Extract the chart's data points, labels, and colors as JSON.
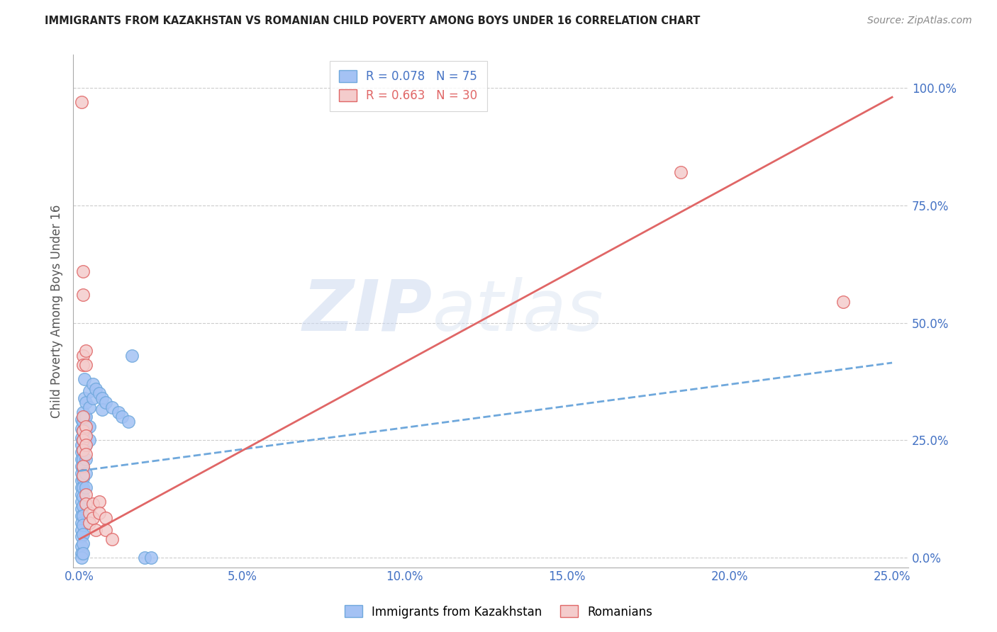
{
  "title": "IMMIGRANTS FROM KAZAKHSTAN VS ROMANIAN CHILD POVERTY AMONG BOYS UNDER 16 CORRELATION CHART",
  "source": "Source: ZipAtlas.com",
  "xlabel_ticks": [
    "0.0%",
    "5.0%",
    "10.0%",
    "15.0%",
    "20.0%",
    "25.0%"
  ],
  "xlabel_vals": [
    0.0,
    0.05,
    0.1,
    0.15,
    0.2,
    0.25
  ],
  "ylabel_ticks": [
    "0.0%",
    "25.0%",
    "50.0%",
    "75.0%",
    "100.0%"
  ],
  "ylabel_vals": [
    0.0,
    0.25,
    0.5,
    0.75,
    1.0
  ],
  "xlim": [
    -0.002,
    0.255
  ],
  "ylim": [
    -0.02,
    1.07
  ],
  "ylabel": "Child Poverty Among Boys Under 16",
  "watermark_zip": "ZIP",
  "watermark_atlas": "atlas",
  "kazakhstan_scatter": [
    [
      0.0005,
      0.295
    ],
    [
      0.0005,
      0.275
    ],
    [
      0.0005,
      0.255
    ],
    [
      0.0005,
      0.24
    ],
    [
      0.0005,
      0.225
    ],
    [
      0.0005,
      0.21
    ],
    [
      0.0005,
      0.195
    ],
    [
      0.0005,
      0.18
    ],
    [
      0.0005,
      0.165
    ],
    [
      0.0005,
      0.15
    ],
    [
      0.0005,
      0.135
    ],
    [
      0.0005,
      0.12
    ],
    [
      0.0005,
      0.105
    ],
    [
      0.0005,
      0.09
    ],
    [
      0.0005,
      0.075
    ],
    [
      0.0005,
      0.06
    ],
    [
      0.0005,
      0.045
    ],
    [
      0.0005,
      0.025
    ],
    [
      0.0005,
      0.01
    ],
    [
      0.0005,
      0.0
    ],
    [
      0.001,
      0.31
    ],
    [
      0.001,
      0.29
    ],
    [
      0.001,
      0.27
    ],
    [
      0.001,
      0.25
    ],
    [
      0.001,
      0.23
    ],
    [
      0.001,
      0.21
    ],
    [
      0.001,
      0.19
    ],
    [
      0.001,
      0.17
    ],
    [
      0.001,
      0.15
    ],
    [
      0.001,
      0.13
    ],
    [
      0.001,
      0.11
    ],
    [
      0.001,
      0.09
    ],
    [
      0.001,
      0.07
    ],
    [
      0.001,
      0.05
    ],
    [
      0.001,
      0.03
    ],
    [
      0.001,
      0.01
    ],
    [
      0.0015,
      0.38
    ],
    [
      0.0015,
      0.34
    ],
    [
      0.0015,
      0.3
    ],
    [
      0.0015,
      0.26
    ],
    [
      0.002,
      0.33
    ],
    [
      0.002,
      0.3
    ],
    [
      0.002,
      0.27
    ],
    [
      0.002,
      0.24
    ],
    [
      0.002,
      0.21
    ],
    [
      0.002,
      0.18
    ],
    [
      0.002,
      0.15
    ],
    [
      0.003,
      0.355
    ],
    [
      0.003,
      0.32
    ],
    [
      0.003,
      0.28
    ],
    [
      0.003,
      0.25
    ],
    [
      0.004,
      0.37
    ],
    [
      0.004,
      0.34
    ],
    [
      0.005,
      0.36
    ],
    [
      0.006,
      0.35
    ],
    [
      0.007,
      0.34
    ],
    [
      0.007,
      0.315
    ],
    [
      0.008,
      0.33
    ],
    [
      0.01,
      0.32
    ],
    [
      0.012,
      0.31
    ],
    [
      0.013,
      0.3
    ],
    [
      0.015,
      0.29
    ],
    [
      0.016,
      0.43
    ],
    [
      0.02,
      0.0
    ],
    [
      0.022,
      0.0
    ]
  ],
  "romania_scatter": [
    [
      0.0005,
      0.97
    ],
    [
      0.001,
      0.61
    ],
    [
      0.001,
      0.56
    ],
    [
      0.001,
      0.43
    ],
    [
      0.001,
      0.41
    ],
    [
      0.001,
      0.3
    ],
    [
      0.001,
      0.27
    ],
    [
      0.001,
      0.25
    ],
    [
      0.001,
      0.23
    ],
    [
      0.001,
      0.195
    ],
    [
      0.001,
      0.175
    ],
    [
      0.002,
      0.44
    ],
    [
      0.002,
      0.41
    ],
    [
      0.002,
      0.28
    ],
    [
      0.002,
      0.26
    ],
    [
      0.002,
      0.24
    ],
    [
      0.002,
      0.22
    ],
    [
      0.002,
      0.135
    ],
    [
      0.002,
      0.115
    ],
    [
      0.003,
      0.095
    ],
    [
      0.003,
      0.075
    ],
    [
      0.004,
      0.115
    ],
    [
      0.004,
      0.085
    ],
    [
      0.005,
      0.06
    ],
    [
      0.006,
      0.12
    ],
    [
      0.006,
      0.095
    ],
    [
      0.008,
      0.085
    ],
    [
      0.008,
      0.06
    ],
    [
      0.01,
      0.04
    ],
    [
      0.185,
      0.82
    ],
    [
      0.235,
      0.545
    ]
  ],
  "kaz_line_x": [
    0.0,
    0.25
  ],
  "kaz_line_y": [
    0.185,
    0.415
  ],
  "rom_line_x": [
    0.0,
    0.25
  ],
  "rom_line_y": [
    0.04,
    0.98
  ],
  "scatter_size": 160,
  "kaz_color": "#a4c2f4",
  "kaz_edge_color": "#6fa8dc",
  "rom_color": "#f4cccc",
  "rom_edge_color": "#e06666",
  "kaz_line_color": "#6fa8dc",
  "rom_line_color": "#e06666",
  "background_color": "#ffffff",
  "grid_color": "#cccccc"
}
